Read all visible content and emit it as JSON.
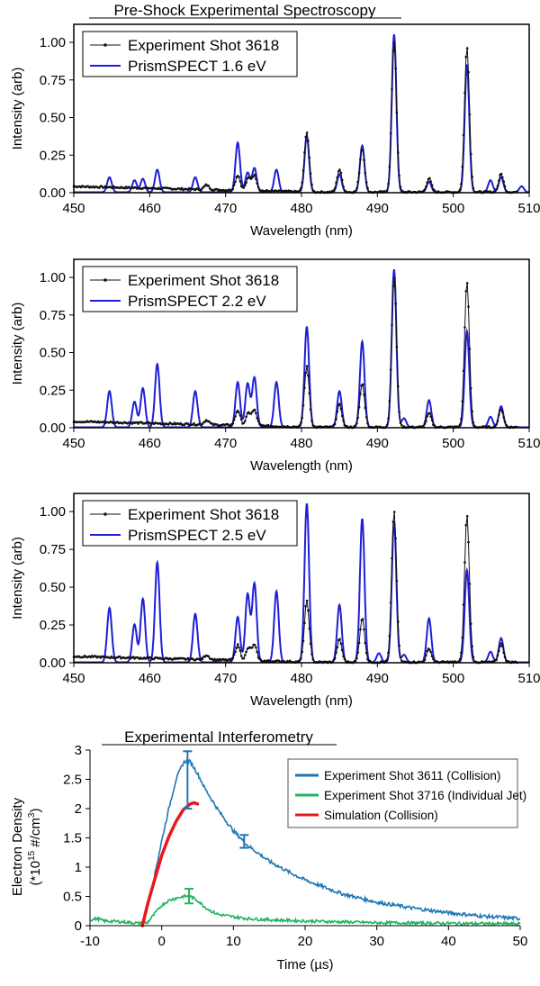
{
  "sections": {
    "spectroscopy_title": "Pre-Shock Experimental Spectroscopy",
    "interferometry_title": "Experimental Interferometry"
  },
  "colors": {
    "experiment": "#111111",
    "prismspect": "#1f1fd6",
    "shot3611": "#1f77b4",
    "shot3716": "#22b35e",
    "simulation": "#e8191a"
  },
  "chart_data": [
    {
      "type": "line",
      "xlabel": "Wavelength (nm)",
      "ylabel": "Intensity (arb)",
      "xlim": [
        450,
        510
      ],
      "ylim": [
        0,
        1.12
      ],
      "xticks": [
        450,
        460,
        470,
        480,
        490,
        500,
        510
      ],
      "yticks": [
        0.0,
        0.25,
        0.5,
        0.75,
        1.0
      ],
      "legend_position": "top-left",
      "series": [
        {
          "name": "Experiment Shot 3618",
          "role": "experiment"
        },
        {
          "name": "PrismSPECT 1.6 eV",
          "role": "model"
        }
      ],
      "experiment_peaks": [
        [
          471.6,
          0.1
        ],
        [
          473.0,
          0.08
        ],
        [
          473.8,
          0.1
        ],
        [
          480.7,
          0.4
        ],
        [
          485.0,
          0.15
        ],
        [
          488.0,
          0.29
        ],
        [
          492.2,
          1.0
        ],
        [
          496.8,
          0.09
        ],
        [
          501.8,
          0.97
        ],
        [
          506.3,
          0.12
        ],
        [
          467.5,
          0.03
        ]
      ],
      "model_peaks": [
        [
          454.7,
          0.1
        ],
        [
          458.0,
          0.08
        ],
        [
          459.1,
          0.09
        ],
        [
          461.0,
          0.15
        ],
        [
          466.0,
          0.1
        ],
        [
          471.6,
          0.33
        ],
        [
          472.9,
          0.13
        ],
        [
          473.8,
          0.16
        ],
        [
          476.7,
          0.15
        ],
        [
          480.7,
          0.37
        ],
        [
          485.0,
          0.12
        ],
        [
          488.0,
          0.31
        ],
        [
          492.2,
          1.05
        ],
        [
          496.8,
          0.07
        ],
        [
          501.8,
          0.85
        ],
        [
          504.9,
          0.08
        ],
        [
          506.3,
          0.1
        ],
        [
          509.0,
          0.04
        ]
      ]
    },
    {
      "type": "line",
      "xlabel": "Wavelength (nm)",
      "ylabel": "Intensity (arb)",
      "xlim": [
        450,
        510
      ],
      "ylim": [
        0,
        1.12
      ],
      "xticks": [
        450,
        460,
        470,
        480,
        490,
        500,
        510
      ],
      "yticks": [
        0.0,
        0.25,
        0.5,
        0.75,
        1.0
      ],
      "legend_position": "top-left",
      "series": [
        {
          "name": "Experiment Shot 3618",
          "role": "experiment"
        },
        {
          "name": "PrismSPECT 2.2 eV",
          "role": "model"
        }
      ],
      "experiment_peaks": [
        [
          471.6,
          0.1
        ],
        [
          473.0,
          0.08
        ],
        [
          473.8,
          0.1
        ],
        [
          480.7,
          0.4
        ],
        [
          485.0,
          0.15
        ],
        [
          488.0,
          0.29
        ],
        [
          492.2,
          1.0
        ],
        [
          496.8,
          0.09
        ],
        [
          501.8,
          0.97
        ],
        [
          506.3,
          0.12
        ],
        [
          467.5,
          0.03
        ]
      ],
      "model_peaks": [
        [
          454.7,
          0.24
        ],
        [
          458.0,
          0.17
        ],
        [
          459.1,
          0.26
        ],
        [
          461.0,
          0.42
        ],
        [
          466.0,
          0.24
        ],
        [
          471.6,
          0.3
        ],
        [
          472.9,
          0.29
        ],
        [
          473.8,
          0.33
        ],
        [
          476.7,
          0.3
        ],
        [
          480.7,
          0.67
        ],
        [
          485.0,
          0.24
        ],
        [
          488.0,
          0.57
        ],
        [
          492.2,
          1.05
        ],
        [
          493.5,
          0.06
        ],
        [
          496.8,
          0.18
        ],
        [
          501.8,
          0.64
        ],
        [
          504.9,
          0.07
        ],
        [
          506.3,
          0.14
        ]
      ]
    },
    {
      "type": "line",
      "xlabel": "Wavelength (nm)",
      "ylabel": "Intensity (arb)",
      "xlim": [
        450,
        510
      ],
      "ylim": [
        0,
        1.12
      ],
      "xticks": [
        450,
        460,
        470,
        480,
        490,
        500,
        510
      ],
      "yticks": [
        0.0,
        0.25,
        0.5,
        0.75,
        1.0
      ],
      "legend_position": "top-left",
      "series": [
        {
          "name": "Experiment Shot 3618",
          "role": "experiment"
        },
        {
          "name": "PrismSPECT 2.5 eV",
          "role": "model"
        }
      ],
      "experiment_peaks": [
        [
          471.6,
          0.1
        ],
        [
          473.0,
          0.08
        ],
        [
          473.8,
          0.1
        ],
        [
          480.7,
          0.4
        ],
        [
          485.0,
          0.15
        ],
        [
          488.0,
          0.29
        ],
        [
          492.2,
          1.0
        ],
        [
          496.8,
          0.09
        ],
        [
          501.8,
          0.97
        ],
        [
          506.3,
          0.12
        ],
        [
          467.5,
          0.03
        ]
      ],
      "model_peaks": [
        [
          454.7,
          0.36
        ],
        [
          458.0,
          0.25
        ],
        [
          459.1,
          0.42
        ],
        [
          461.0,
          0.66
        ],
        [
          466.0,
          0.32
        ],
        [
          471.6,
          0.3
        ],
        [
          472.9,
          0.45
        ],
        [
          473.8,
          0.52
        ],
        [
          476.7,
          0.47
        ],
        [
          480.7,
          1.05
        ],
        [
          485.0,
          0.38
        ],
        [
          488.0,
          0.95
        ],
        [
          490.2,
          0.06
        ],
        [
          492.2,
          0.93
        ],
        [
          493.5,
          0.05
        ],
        [
          496.8,
          0.29
        ],
        [
          501.8,
          0.61
        ],
        [
          504.9,
          0.07
        ],
        [
          506.3,
          0.16
        ]
      ]
    },
    {
      "type": "line",
      "xlabel": "Time (µs)",
      "ylabel_line1": "Electron Density",
      "ylabel_line2": "(*10",
      "ylabel_sup1": "15",
      "ylabel_line2b": " #/cm",
      "ylabel_sup2": "3",
      "ylabel_line2c": ")",
      "xlim": [
        -10,
        50
      ],
      "ylim": [
        0,
        3
      ],
      "xticks": [
        -10,
        0,
        10,
        20,
        30,
        40,
        50
      ],
      "yticks": [
        0,
        0.5,
        1,
        1.5,
        2,
        2.5,
        3
      ],
      "legend_position": "top-right",
      "series": [
        {
          "name": "Experiment Shot 3611 (Collision)",
          "role": "shot3611",
          "x": [
            -2.6,
            -2,
            -1,
            0,
            1,
            2,
            3,
            3.5,
            4,
            5,
            6,
            8,
            10,
            12,
            15,
            18,
            20,
            25,
            30,
            35,
            40,
            45,
            50
          ],
          "y": [
            0.0,
            0.3,
            0.85,
            1.45,
            2.0,
            2.5,
            2.78,
            2.82,
            2.8,
            2.6,
            2.35,
            1.95,
            1.62,
            1.37,
            1.1,
            0.9,
            0.78,
            0.55,
            0.4,
            0.3,
            0.22,
            0.16,
            0.12
          ]
        },
        {
          "name": "Experiment Shot 3716 (Individual Jet)",
          "role": "shot3716",
          "x": [
            -10,
            -9,
            -8,
            -6,
            -4,
            -3,
            -2,
            -1,
            0,
            1,
            2,
            3,
            4,
            5,
            6,
            7,
            8,
            10,
            12,
            15,
            20,
            30,
            40,
            50
          ],
          "y": [
            0.1,
            0.12,
            0.08,
            0.07,
            0.05,
            0.04,
            0.05,
            0.2,
            0.35,
            0.43,
            0.47,
            0.5,
            0.5,
            0.43,
            0.32,
            0.24,
            0.19,
            0.15,
            0.12,
            0.1,
            0.08,
            0.05,
            0.04,
            0.03
          ]
        },
        {
          "name": "Simulation (Collision)",
          "role": "simulation",
          "x": [
            -2.7,
            -2,
            -1,
            0,
            1,
            2,
            3,
            4,
            4.5,
            5
          ],
          "y": [
            0.0,
            0.35,
            0.78,
            1.2,
            1.52,
            1.78,
            1.98,
            2.08,
            2.1,
            2.08
          ]
        }
      ],
      "error_bars": [
        {
          "role": "shot3611",
          "x": 3.6,
          "y": 2.82,
          "low": 2.0,
          "high": 2.98
        },
        {
          "role": "shot3611",
          "x": 11.5,
          "y": 1.45,
          "low": 1.33,
          "high": 1.55
        },
        {
          "role": "shot3716",
          "x": 3.8,
          "y": 0.5,
          "low": 0.38,
          "high": 0.63
        }
      ]
    }
  ]
}
